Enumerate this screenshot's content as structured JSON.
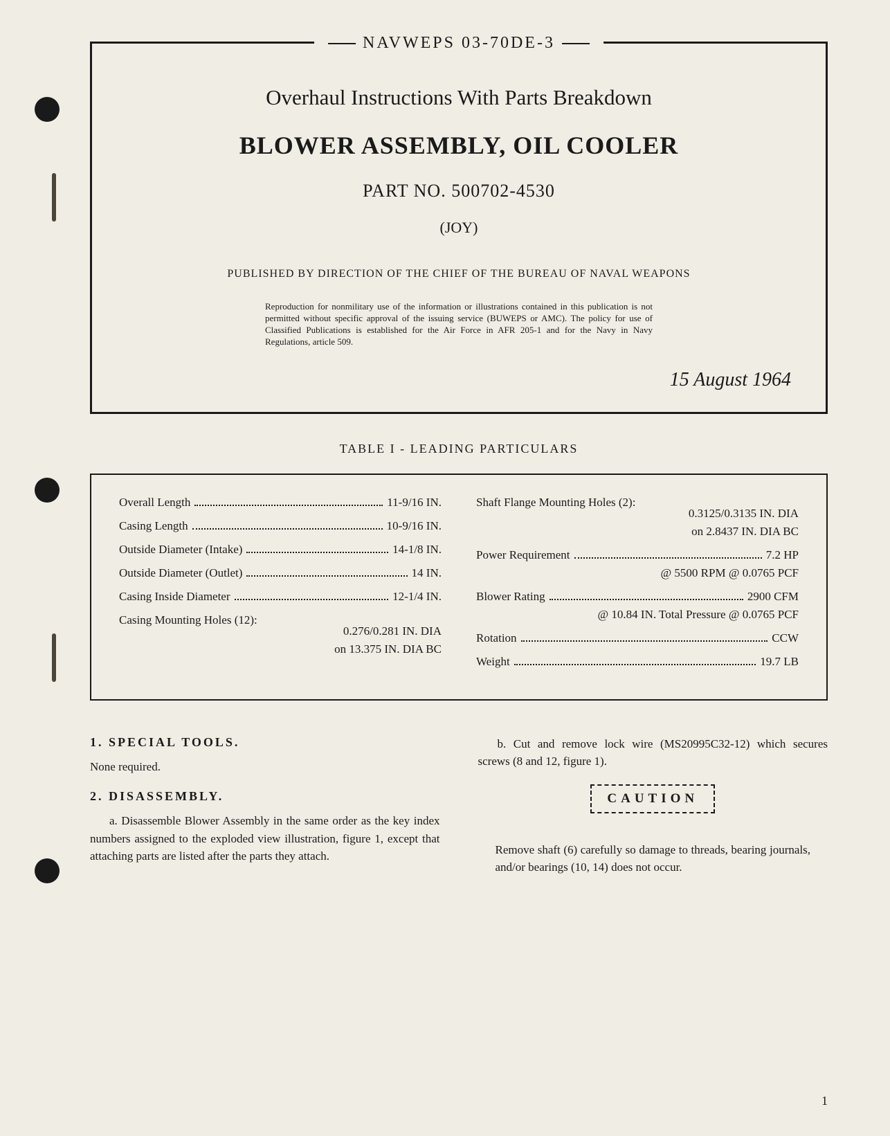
{
  "document": {
    "doc_number": "NAVWEPS 03-70DE-3",
    "subtitle": "Overhaul Instructions With Parts Breakdown",
    "main_title": "BLOWER ASSEMBLY, OIL COOLER",
    "part_no": "PART NO. 500702-4530",
    "manufacturer": "(JOY)",
    "published_by": "PUBLISHED BY DIRECTION OF THE CHIEF OF THE BUREAU OF NAVAL WEAPONS",
    "reproduction_notice": "Reproduction for nonmilitary use of the information or illustrations contained in this publication is not permitted without specific approval of the issuing service (BUWEPS or AMC). The policy for use of Classified Publications is established for the Air Force in AFR 205-1 and for the Navy in Navy Regulations, article 509.",
    "date": "15 August 1964",
    "page_number": "1"
  },
  "table": {
    "title": "TABLE I - LEADING PARTICULARS",
    "left_col": [
      {
        "label": "Overall Length",
        "value": "11-9/16 IN."
      },
      {
        "label": "Casing Length",
        "value": "10-9/16 IN."
      },
      {
        "label": "Outside Diameter (Intake)",
        "value": "14-1/8 IN."
      },
      {
        "label": "Outside Diameter (Outlet)",
        "value": "14 IN."
      },
      {
        "label": "Casing Inside Diameter",
        "value": "12-1/4 IN."
      }
    ],
    "left_multiline": {
      "header": "Casing Mounting Holes (12):",
      "line1": "0.276/0.281 IN. DIA",
      "line2": "on 13.375 IN. DIA BC"
    },
    "right_multiline": {
      "header": "Shaft Flange Mounting Holes (2):",
      "line1": "0.3125/0.3135 IN. DIA",
      "line2": "on 2.8437 IN. DIA BC"
    },
    "right_col": [
      {
        "label": "Power Requirement",
        "value": "7.2 HP",
        "sub": "@ 5500 RPM @ 0.0765 PCF"
      },
      {
        "label": "Blower Rating",
        "value": "2900 CFM",
        "sub": "@ 10.84 IN. Total Pressure @ 0.0765 PCF"
      },
      {
        "label": "Rotation",
        "value": "CCW"
      },
      {
        "label": "Weight",
        "value": "19.7 LB"
      }
    ]
  },
  "sections": {
    "s1_heading": "1. SPECIAL TOOLS.",
    "s1_text": "None required.",
    "s2_heading": "2. DISASSEMBLY.",
    "s2_a": "a. Disassemble Blower Assembly in the same order as the key index numbers assigned to the exploded view illustration, figure 1, except that attaching parts are listed after the parts they attach.",
    "s2_b": "b. Cut and remove lock wire (MS20995C32-12) which secures screws (8 and 12, figure 1).",
    "caution_label": "CAUTION",
    "caution_text": "Remove shaft (6) carefully so damage to threads, bearing journals, and/or bearings (10, 14) does not occur."
  },
  "colors": {
    "page_bg": "#f0ede4",
    "text": "#1a1a1a",
    "border": "#1a1a1a"
  }
}
